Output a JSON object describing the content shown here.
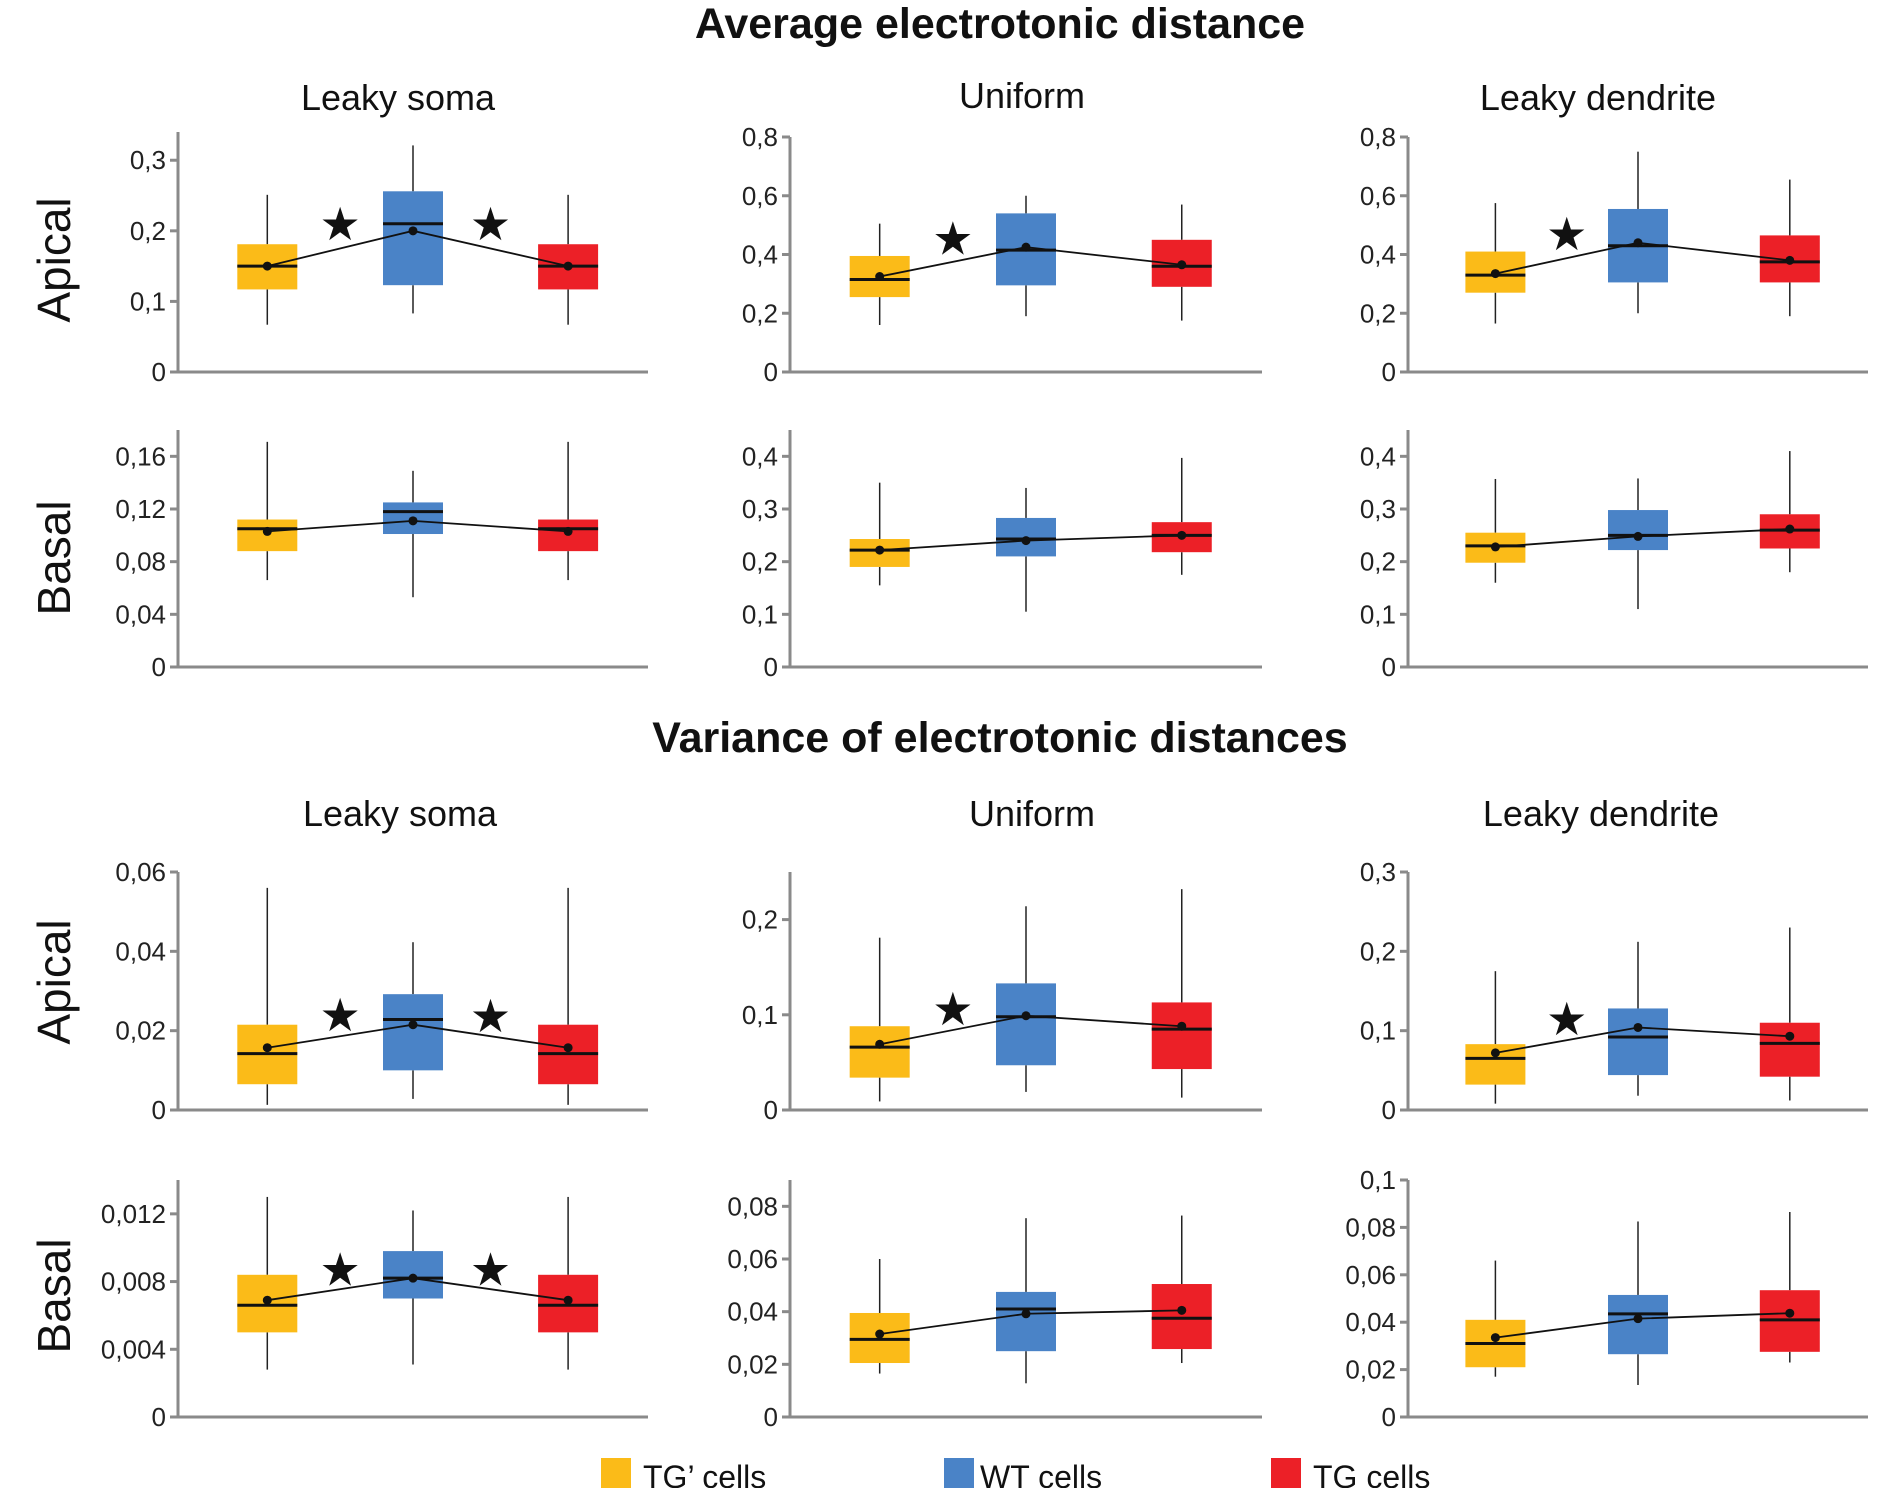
{
  "sections": [
    {
      "title": "Average electrotonic distance"
    },
    {
      "title": "Variance of electrotonic distances"
    }
  ],
  "columns": [
    "Leaky soma",
    "Uniform",
    "Leaky dendrite"
  ],
  "rows": [
    "Apical",
    "Basal"
  ],
  "colors": {
    "tg_prime": "#fbbb18",
    "wt": "#4a83c7",
    "tg": "#ec2027",
    "axis": "#8a8a8a"
  },
  "legend": [
    {
      "label": "TG’ cells",
      "color_key": "tg_prime"
    },
    {
      "label": "WT cells",
      "color_key": "wt"
    },
    {
      "label": "TG cells",
      "color_key": "tg"
    }
  ],
  "significance_symbol": "★",
  "chart_data": [
    {
      "type": "box",
      "section": 0,
      "row": "Apical",
      "column": "Leaky soma",
      "ylim": [
        0,
        0.34
      ],
      "yticks": [
        {
          "v": 0,
          "label": "0"
        },
        {
          "v": 0.1,
          "label": "0,1"
        },
        {
          "v": 0.2,
          "label": "0,2"
        },
        {
          "v": 0.3,
          "label": "0,3"
        }
      ],
      "groups": [
        {
          "name": "TG’ cells",
          "min": 0.067,
          "q1": 0.117,
          "median": 0.15,
          "q3": 0.181,
          "max": 0.251,
          "mean": 0.15
        },
        {
          "name": "WT cells",
          "min": 0.083,
          "q1": 0.123,
          "median": 0.21,
          "q3": 0.256,
          "max": 0.321,
          "mean": 0.2
        },
        {
          "name": "TG cells",
          "min": 0.067,
          "q1": 0.117,
          "median": 0.15,
          "q3": 0.181,
          "max": 0.251,
          "mean": 0.15
        }
      ],
      "stars": [
        {
          "at": 0.5,
          "y": 0.21
        },
        {
          "at": 1.5,
          "y": 0.21
        }
      ]
    },
    {
      "type": "box",
      "section": 0,
      "row": "Apical",
      "column": "Uniform",
      "ylim": [
        0,
        0.8
      ],
      "yticks": [
        {
          "v": 0,
          "label": "0"
        },
        {
          "v": 0.2,
          "label": "0,2"
        },
        {
          "v": 0.4,
          "label": "0,4"
        },
        {
          "v": 0.6,
          "label": "0,6"
        },
        {
          "v": 0.8,
          "label": "0,8"
        }
      ],
      "groups": [
        {
          "name": "TG’ cells",
          "min": 0.16,
          "q1": 0.255,
          "median": 0.315,
          "q3": 0.395,
          "max": 0.505,
          "mean": 0.325
        },
        {
          "name": "WT cells",
          "min": 0.19,
          "q1": 0.295,
          "median": 0.415,
          "q3": 0.54,
          "max": 0.6,
          "mean": 0.425
        },
        {
          "name": "TG cells",
          "min": 0.175,
          "q1": 0.29,
          "median": 0.36,
          "q3": 0.45,
          "max": 0.57,
          "mean": 0.365
        }
      ],
      "stars": [
        {
          "at": 0.5,
          "y": 0.455
        }
      ]
    },
    {
      "type": "box",
      "section": 0,
      "row": "Apical",
      "column": "Leaky dendrite",
      "ylim": [
        0,
        0.8
      ],
      "yticks": [
        {
          "v": 0,
          "label": "0"
        },
        {
          "v": 0.2,
          "label": "0,2"
        },
        {
          "v": 0.4,
          "label": "0,4"
        },
        {
          "v": 0.6,
          "label": "0,6"
        },
        {
          "v": 0.8,
          "label": "0,8"
        }
      ],
      "groups": [
        {
          "name": "TG’ cells",
          "min": 0.165,
          "q1": 0.27,
          "median": 0.33,
          "q3": 0.41,
          "max": 0.575,
          "mean": 0.335
        },
        {
          "name": "WT cells",
          "min": 0.2,
          "q1": 0.305,
          "median": 0.43,
          "q3": 0.555,
          "max": 0.75,
          "mean": 0.44
        },
        {
          "name": "TG cells",
          "min": 0.19,
          "q1": 0.305,
          "median": 0.375,
          "q3": 0.465,
          "max": 0.655,
          "mean": 0.38
        }
      ],
      "stars": [
        {
          "at": 0.5,
          "y": 0.47
        }
      ]
    },
    {
      "type": "box",
      "section": 0,
      "row": "Basal",
      "column": "Leaky soma",
      "ylim": [
        0,
        0.18
      ],
      "yticks": [
        {
          "v": 0,
          "label": "0"
        },
        {
          "v": 0.04,
          "label": "0,04"
        },
        {
          "v": 0.08,
          "label": "0,08"
        },
        {
          "v": 0.12,
          "label": "0,12"
        },
        {
          "v": 0.16,
          "label": "0,16"
        }
      ],
      "groups": [
        {
          "name": "TG’ cells",
          "min": 0.066,
          "q1": 0.088,
          "median": 0.105,
          "q3": 0.112,
          "max": 0.171,
          "mean": 0.103
        },
        {
          "name": "WT cells",
          "min": 0.053,
          "q1": 0.101,
          "median": 0.118,
          "q3": 0.125,
          "max": 0.149,
          "mean": 0.111
        },
        {
          "name": "TG cells",
          "min": 0.066,
          "q1": 0.088,
          "median": 0.105,
          "q3": 0.112,
          "max": 0.171,
          "mean": 0.103
        }
      ],
      "stars": []
    },
    {
      "type": "box",
      "section": 0,
      "row": "Basal",
      "column": "Uniform",
      "ylim": [
        0,
        0.45
      ],
      "yticks": [
        {
          "v": 0,
          "label": "0"
        },
        {
          "v": 0.1,
          "label": "0,1"
        },
        {
          "v": 0.2,
          "label": "0,2"
        },
        {
          "v": 0.3,
          "label": "0,3"
        },
        {
          "v": 0.4,
          "label": "0,4"
        }
      ],
      "groups": [
        {
          "name": "TG’ cells",
          "min": 0.155,
          "q1": 0.19,
          "median": 0.222,
          "q3": 0.243,
          "max": 0.35,
          "mean": 0.222
        },
        {
          "name": "WT cells",
          "min": 0.105,
          "q1": 0.21,
          "median": 0.243,
          "q3": 0.283,
          "max": 0.34,
          "mean": 0.24
        },
        {
          "name": "TG cells",
          "min": 0.175,
          "q1": 0.218,
          "median": 0.25,
          "q3": 0.275,
          "max": 0.397,
          "mean": 0.25
        }
      ],
      "stars": []
    },
    {
      "type": "box",
      "section": 0,
      "row": "Basal",
      "column": "Leaky dendrite",
      "ylim": [
        0,
        0.45
      ],
      "yticks": [
        {
          "v": 0,
          "label": "0"
        },
        {
          "v": 0.1,
          "label": "0,1"
        },
        {
          "v": 0.2,
          "label": "0,2"
        },
        {
          "v": 0.3,
          "label": "0,3"
        },
        {
          "v": 0.4,
          "label": "0,4"
        }
      ],
      "groups": [
        {
          "name": "TG’ cells",
          "min": 0.16,
          "q1": 0.198,
          "median": 0.23,
          "q3": 0.255,
          "max": 0.357,
          "mean": 0.228
        },
        {
          "name": "WT cells",
          "min": 0.11,
          "q1": 0.222,
          "median": 0.25,
          "q3": 0.298,
          "max": 0.358,
          "mean": 0.248
        },
        {
          "name": "TG cells",
          "min": 0.18,
          "q1": 0.225,
          "median": 0.26,
          "q3": 0.29,
          "max": 0.41,
          "mean": 0.262
        }
      ],
      "stars": []
    },
    {
      "type": "box",
      "section": 1,
      "row": "Apical",
      "column": "Leaky soma",
      "ylim": [
        0,
        0.06
      ],
      "yticks": [
        {
          "v": 0,
          "label": "0"
        },
        {
          "v": 0.02,
          "label": "0,02"
        },
        {
          "v": 0.04,
          "label": "0,04"
        },
        {
          "v": 0.06,
          "label": "0,06"
        }
      ],
      "groups": [
        {
          "name": "TG’ cells",
          "min": 0.0013,
          "q1": 0.0065,
          "median": 0.0142,
          "q3": 0.0215,
          "max": 0.056,
          "mean": 0.0157
        },
        {
          "name": "WT cells",
          "min": 0.0028,
          "q1": 0.01,
          "median": 0.0228,
          "q3": 0.0292,
          "max": 0.0423,
          "mean": 0.0215
        },
        {
          "name": "TG cells",
          "min": 0.0013,
          "q1": 0.0065,
          "median": 0.0142,
          "q3": 0.0215,
          "max": 0.056,
          "mean": 0.0157
        }
      ],
      "stars": [
        {
          "at": 0.5,
          "y": 0.024
        },
        {
          "at": 1.5,
          "y": 0.0237
        }
      ]
    },
    {
      "type": "box",
      "section": 1,
      "row": "Apical",
      "column": "Uniform",
      "ylim": [
        0,
        0.25
      ],
      "yticks": [
        {
          "v": 0,
          "label": "0"
        },
        {
          "v": 0.1,
          "label": "0,1"
        },
        {
          "v": 0.2,
          "label": "0,2"
        }
      ],
      "groups": [
        {
          "name": "TG’ cells",
          "min": 0.009,
          "q1": 0.034,
          "median": 0.066,
          "q3": 0.088,
          "max": 0.181,
          "mean": 0.069
        },
        {
          "name": "WT cells",
          "min": 0.019,
          "q1": 0.047,
          "median": 0.098,
          "q3": 0.133,
          "max": 0.214,
          "mean": 0.099
        },
        {
          "name": "TG cells",
          "min": 0.013,
          "q1": 0.043,
          "median": 0.085,
          "q3": 0.113,
          "max": 0.232,
          "mean": 0.088
        }
      ],
      "stars": [
        {
          "at": 0.5,
          "y": 0.106
        }
      ]
    },
    {
      "type": "box",
      "section": 1,
      "row": "Apical",
      "column": "Leaky dendrite",
      "ylim": [
        0,
        0.3
      ],
      "yticks": [
        {
          "v": 0,
          "label": "0"
        },
        {
          "v": 0.1,
          "label": "0,1"
        },
        {
          "v": 0.2,
          "label": "0,2"
        },
        {
          "v": 0.3,
          "label": "0,3"
        }
      ],
      "groups": [
        {
          "name": "TG’ cells",
          "min": 0.008,
          "q1": 0.032,
          "median": 0.065,
          "q3": 0.083,
          "max": 0.175,
          "mean": 0.072
        },
        {
          "name": "WT cells",
          "min": 0.018,
          "q1": 0.044,
          "median": 0.092,
          "q3": 0.128,
          "max": 0.212,
          "mean": 0.104
        },
        {
          "name": "TG cells",
          "min": 0.012,
          "q1": 0.042,
          "median": 0.084,
          "q3": 0.11,
          "max": 0.23,
          "mean": 0.093
        }
      ],
      "stars": [
        {
          "at": 0.5,
          "y": 0.115
        }
      ]
    },
    {
      "type": "box",
      "section": 1,
      "row": "Basal",
      "column": "Leaky soma",
      "ylim": [
        0,
        0.014
      ],
      "yticks": [
        {
          "v": 0,
          "label": "0"
        },
        {
          "v": 0.004,
          "label": "0,004"
        },
        {
          "v": 0.008,
          "label": "0,008"
        },
        {
          "v": 0.012,
          "label": "0,012"
        }
      ],
      "groups": [
        {
          "name": "TG’ cells",
          "min": 0.0028,
          "q1": 0.005,
          "median": 0.0066,
          "q3": 0.0084,
          "max": 0.013,
          "mean": 0.0069
        },
        {
          "name": "WT cells",
          "min": 0.0031,
          "q1": 0.007,
          "median": 0.0082,
          "q3": 0.0098,
          "max": 0.0122,
          "mean": 0.0082
        },
        {
          "name": "TG cells",
          "min": 0.0028,
          "q1": 0.005,
          "median": 0.0066,
          "q3": 0.0084,
          "max": 0.013,
          "mean": 0.0069
        }
      ],
      "stars": [
        {
          "at": 0.5,
          "y": 0.0087
        },
        {
          "at": 1.5,
          "y": 0.0087
        }
      ]
    },
    {
      "type": "box",
      "section": 1,
      "row": "Basal",
      "column": "Uniform",
      "ylim": [
        0,
        0.09
      ],
      "yticks": [
        {
          "v": 0,
          "label": "0"
        },
        {
          "v": 0.02,
          "label": "0,02"
        },
        {
          "v": 0.04,
          "label": "0,04"
        },
        {
          "v": 0.06,
          "label": "0,06"
        },
        {
          "v": 0.08,
          "label": "0,08"
        }
      ],
      "groups": [
        {
          "name": "TG’ cells",
          "min": 0.0165,
          "q1": 0.0205,
          "median": 0.0295,
          "q3": 0.0395,
          "max": 0.06,
          "mean": 0.0315
        },
        {
          "name": "WT cells",
          "min": 0.0128,
          "q1": 0.025,
          "median": 0.041,
          "q3": 0.0475,
          "max": 0.0755,
          "mean": 0.0392
        },
        {
          "name": "TG cells",
          "min": 0.0205,
          "q1": 0.0258,
          "median": 0.0375,
          "q3": 0.0505,
          "max": 0.0765,
          "mean": 0.0405
        }
      ],
      "stars": []
    },
    {
      "type": "box",
      "section": 1,
      "row": "Basal",
      "column": "Leaky dendrite",
      "ylim": [
        0,
        0.1
      ],
      "yticks": [
        {
          "v": 0,
          "label": "0"
        },
        {
          "v": 0.02,
          "label": "0,02"
        },
        {
          "v": 0.04,
          "label": "0,04"
        },
        {
          "v": 0.06,
          "label": "0,06"
        },
        {
          "v": 0.08,
          "label": "0,08"
        },
        {
          "v": 0.1,
          "label": "0,1"
        }
      ],
      "groups": [
        {
          "name": "TG’ cells",
          "min": 0.017,
          "q1": 0.021,
          "median": 0.031,
          "q3": 0.041,
          "max": 0.066,
          "mean": 0.0335
        },
        {
          "name": "WT cells",
          "min": 0.0135,
          "q1": 0.0265,
          "median": 0.0435,
          "q3": 0.0515,
          "max": 0.0825,
          "mean": 0.0415
        },
        {
          "name": "TG cells",
          "min": 0.023,
          "q1": 0.0275,
          "median": 0.041,
          "q3": 0.0535,
          "max": 0.0865,
          "mean": 0.0438
        }
      ],
      "stars": []
    }
  ]
}
